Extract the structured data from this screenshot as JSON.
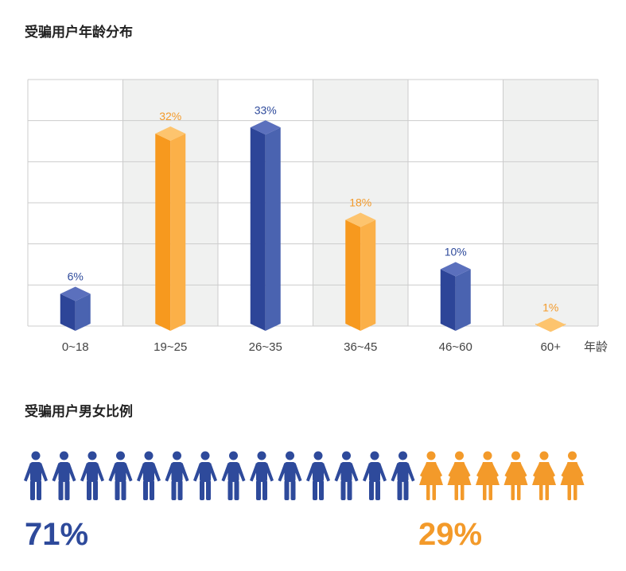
{
  "colors": {
    "male": "#2e4a9b",
    "female": "#f39a2a",
    "grid": "#cccccc",
    "band": "#f0f1f0"
  },
  "age_section": {
    "title": "受骗用户年龄分布"
  },
  "gender_section": {
    "title": "受骗用户男女比例",
    "male_icon": "male-person-icon",
    "female_icon": "female-person-icon",
    "male_count": 14,
    "female_count": 6
  },
  "chart_data": [
    {
      "type": "bar",
      "title": "受骗用户年龄分布",
      "xlabel": "年龄",
      "ylabel": "",
      "categories": [
        "0~18",
        "19~25",
        "26~35",
        "36~45",
        "46~60",
        "60+"
      ],
      "values": [
        6,
        32,
        33,
        18,
        10,
        1
      ],
      "value_labels": [
        "6%",
        "32%",
        "33%",
        "18%",
        "10%",
        "1%"
      ],
      "bar_colors": [
        "#2e4a9b",
        "#f39a2a",
        "#2e4a9b",
        "#f39a2a",
        "#2e4a9b",
        "#f39a2a"
      ],
      "ylim": [
        0,
        40
      ],
      "grid": true
    },
    {
      "type": "pictogram",
      "title": "受骗用户男女比例",
      "categories": [
        "男",
        "女"
      ],
      "values": [
        71,
        29
      ],
      "value_labels": [
        "71%",
        "29%"
      ]
    }
  ]
}
